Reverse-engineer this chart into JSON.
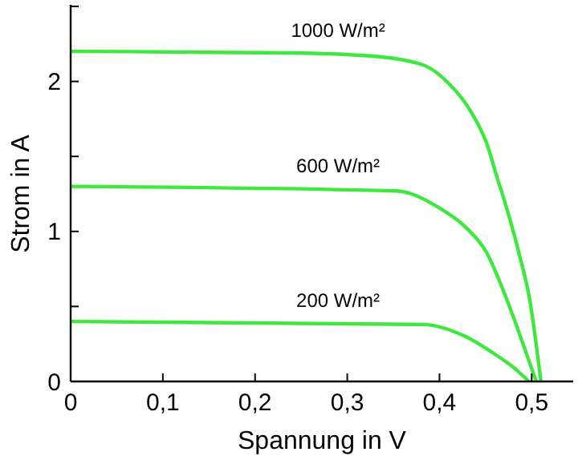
{
  "chart_data": {
    "type": "line",
    "xlabel": "Spannung in V",
    "ylabel": "Strom in A",
    "xlim": [
      0,
      0.545
    ],
    "ylim": [
      0,
      2.5
    ],
    "xticks": [
      0,
      {
        "value": 0.1,
        "label": "0,1"
      },
      {
        "value": 0.2,
        "label": "0,2"
      },
      {
        "value": 0.3,
        "label": "0,3"
      },
      {
        "value": 0.4,
        "label": "0,4"
      },
      {
        "value": 0.5,
        "label": "0,5"
      }
    ],
    "yticks": [
      0,
      {
        "value": 0.5,
        "label": null
      },
      1,
      {
        "value": 1.5,
        "label": null
      },
      2,
      {
        "value": 2.5,
        "label": null
      }
    ],
    "grid": false,
    "marker": "none",
    "line_style": "solid",
    "series": [
      {
        "name": "1000 W/m²",
        "color": "#3ee83e",
        "x": [
          0,
          0.237,
          0.324,
          0.382,
          0.411,
          0.434,
          0.451,
          0.463,
          0.475,
          0.486,
          0.498,
          0.51
        ],
        "values": [
          2.2,
          2.19,
          2.17,
          2.11,
          1.98,
          1.8,
          1.59,
          1.35,
          1.11,
          0.86,
          0.54,
          0
        ]
      },
      {
        "name": "600 W/m²",
        "color": "#3ee83e",
        "x": [
          0,
          0.353,
          0.399,
          0.428,
          0.451,
          0.469,
          0.486,
          0.505
        ],
        "values": [
          1.3,
          1.27,
          1.16,
          1.03,
          0.86,
          0.61,
          0.33,
          0
        ]
      },
      {
        "name": "200 W/m²",
        "color": "#3ee83e",
        "x": [
          0,
          0.382,
          0.428,
          0.458,
          0.481,
          0.497
        ],
        "values": [
          0.4,
          0.38,
          0.3,
          0.19,
          0.09,
          0
        ]
      }
    ]
  }
}
